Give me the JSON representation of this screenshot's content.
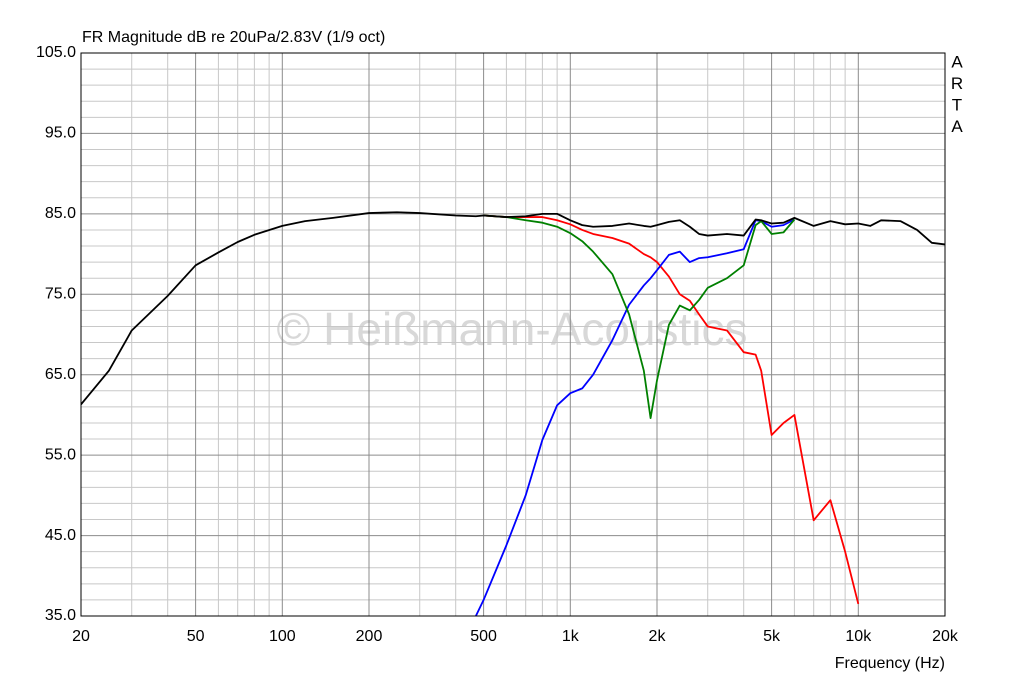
{
  "chart_data": {
    "type": "line",
    "title": "FR Magnitude dB re 20uPa/2.83V (1/9 oct)",
    "x_label": "Frequency (Hz)",
    "side_text": [
      "A",
      "R",
      "T",
      "A"
    ],
    "watermark": "© Heißmann-Acoustics",
    "x_scale": "log",
    "grid": true,
    "x": [
      20,
      25,
      30,
      40,
      50,
      60,
      70,
      80,
      100,
      120,
      150,
      200,
      250,
      300,
      400,
      470,
      500,
      600,
      700,
      800,
      900,
      1000,
      1100,
      1200,
      1400,
      1600,
      1800,
      1900,
      2000,
      2200,
      2400,
      2600,
      2800,
      3000,
      3500,
      4000,
      4400,
      4600,
      5000,
      5500,
      6000,
      7000,
      8000,
      9000,
      10000,
      11000,
      12000,
      14000,
      16000,
      18000,
      20000
    ],
    "series": [
      {
        "color": "#ff0000",
        "values": [
          null,
          null,
          null,
          null,
          null,
          null,
          null,
          null,
          null,
          null,
          null,
          null,
          null,
          null,
          null,
          null,
          84.8,
          84.6,
          84.6,
          84.6,
          84.2,
          83.7,
          83.0,
          82.5,
          82.0,
          81.3,
          80.0,
          79.6,
          79.0,
          77.2,
          75.0,
          74.2,
          72.5,
          71.0,
          70.5,
          67.8,
          67.5,
          65.5,
          57.5,
          59.0,
          60.0,
          46.9,
          49.4,
          43.0,
          36.5,
          null,
          null,
          null,
          null,
          null,
          null
        ]
      },
      {
        "color": "#0000ff",
        "values": [
          null,
          null,
          null,
          null,
          null,
          null,
          null,
          null,
          null,
          null,
          null,
          null,
          null,
          null,
          null,
          35.0,
          37.0,
          43.8,
          50.0,
          56.9,
          61.2,
          62.7,
          63.3,
          65.0,
          69.3,
          73.7,
          76.1,
          77.0,
          78.0,
          79.9,
          80.3,
          79.0,
          79.5,
          79.6,
          80.1,
          80.6,
          84.2,
          84.1,
          83.4,
          83.6,
          84.3,
          null,
          null,
          null,
          null,
          null,
          null,
          null,
          null,
          null,
          null
        ]
      },
      {
        "color": "#008000",
        "values": [
          null,
          null,
          null,
          null,
          null,
          null,
          null,
          null,
          null,
          null,
          null,
          null,
          null,
          null,
          null,
          null,
          84.8,
          84.6,
          84.2,
          83.9,
          83.4,
          82.6,
          81.6,
          80.3,
          77.5,
          72.5,
          65.5,
          59.6,
          64.3,
          71.2,
          73.6,
          73.0,
          74.3,
          75.8,
          77.0,
          78.6,
          83.6,
          84.1,
          82.5,
          82.7,
          84.3,
          null,
          null,
          null,
          null,
          null,
          null,
          null,
          null,
          null,
          null
        ]
      },
      {
        "color": "#000000",
        "values": [
          61.3,
          65.5,
          70.5,
          74.8,
          78.6,
          80.2,
          81.5,
          82.4,
          83.5,
          84.1,
          84.5,
          85.1,
          85.2,
          85.1,
          84.8,
          84.7,
          84.8,
          84.6,
          84.7,
          85.0,
          85.0,
          84.2,
          83.6,
          83.4,
          83.5,
          83.8,
          83.5,
          83.4,
          83.6,
          84.0,
          84.2,
          83.4,
          82.5,
          82.3,
          82.5,
          82.3,
          84.3,
          84.2,
          83.8,
          83.9,
          84.5,
          83.5,
          84.1,
          83.7,
          83.8,
          83.5,
          84.2,
          84.1,
          83.0,
          81.4,
          81.2
        ]
      }
    ],
    "xlim": [
      20,
      20000
    ],
    "xticks": [
      20,
      50,
      100,
      200,
      500,
      {
        "value": 1000,
        "label": "1k"
      },
      {
        "value": 2000,
        "label": "2k"
      },
      {
        "value": 5000,
        "label": "5k"
      },
      {
        "value": 10000,
        "label": "10k"
      },
      {
        "value": 20000,
        "label": "20k"
      }
    ],
    "xgrid": [
      30,
      40,
      60,
      70,
      80,
      90,
      300,
      400,
      600,
      700,
      800,
      900,
      3000,
      4000,
      6000,
      7000,
      8000,
      9000
    ],
    "ylim": [
      35,
      105
    ],
    "yticks": [
      {
        "value": 105,
        "label": "105.0"
      },
      {
        "value": 95,
        "label": "95.0"
      },
      {
        "value": 85,
        "label": "85.0"
      },
      {
        "value": 75,
        "label": "75.0"
      },
      {
        "value": 65,
        "label": "65.0"
      },
      {
        "value": 55,
        "label": "55.0"
      },
      {
        "value": 45,
        "label": "45.0"
      },
      {
        "value": 35,
        "label": "35.0"
      }
    ],
    "ygrid": [
      37,
      39,
      41,
      43,
      47,
      49,
      51,
      53,
      57,
      59,
      61,
      63,
      67,
      69,
      71,
      73,
      77,
      79,
      81,
      83,
      87,
      89,
      91,
      93,
      97,
      99,
      101,
      103
    ]
  }
}
